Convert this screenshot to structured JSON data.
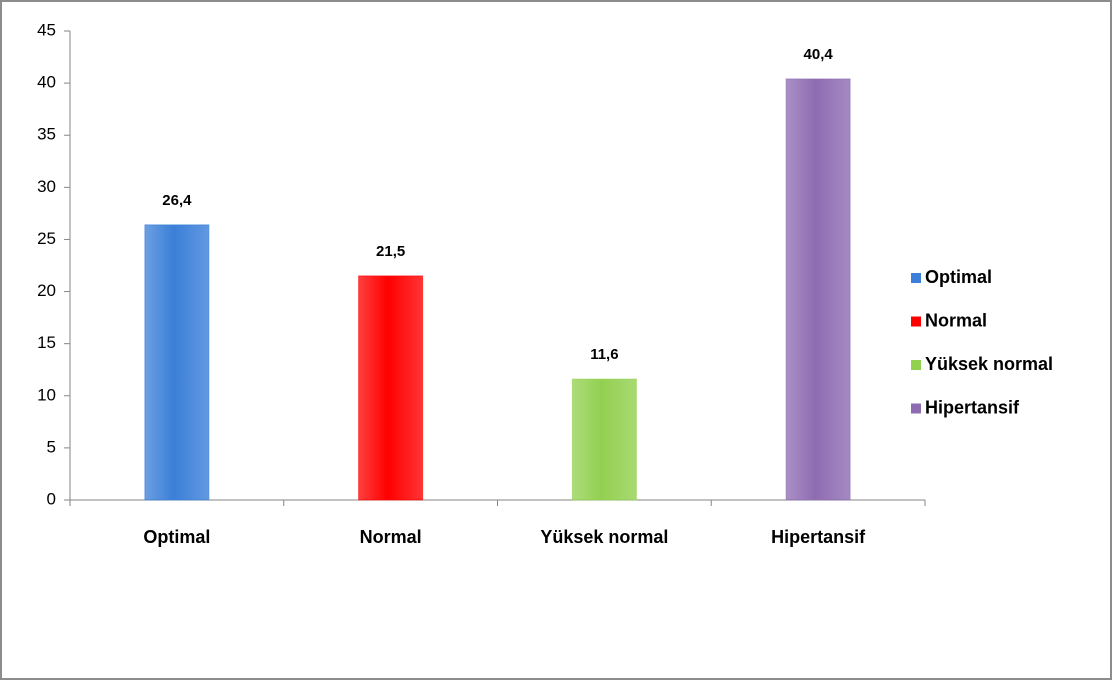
{
  "chart_data": {
    "type": "bar",
    "categories": [
      "Optimal",
      "Normal",
      "Yüksek normal",
      "Hipertansif"
    ],
    "values": [
      26.4,
      21.5,
      11.6,
      40.4
    ],
    "value_labels": [
      "26,4",
      "21,5",
      "11,6",
      "40,4"
    ],
    "colors": [
      "#3b7fd8",
      "#ff0000",
      "#92d050",
      "#8e6cb2"
    ],
    "ylim": [
      0,
      45
    ],
    "yticks": [
      0,
      5,
      10,
      15,
      20,
      25,
      30,
      35,
      40,
      45
    ],
    "legend": "right"
  }
}
